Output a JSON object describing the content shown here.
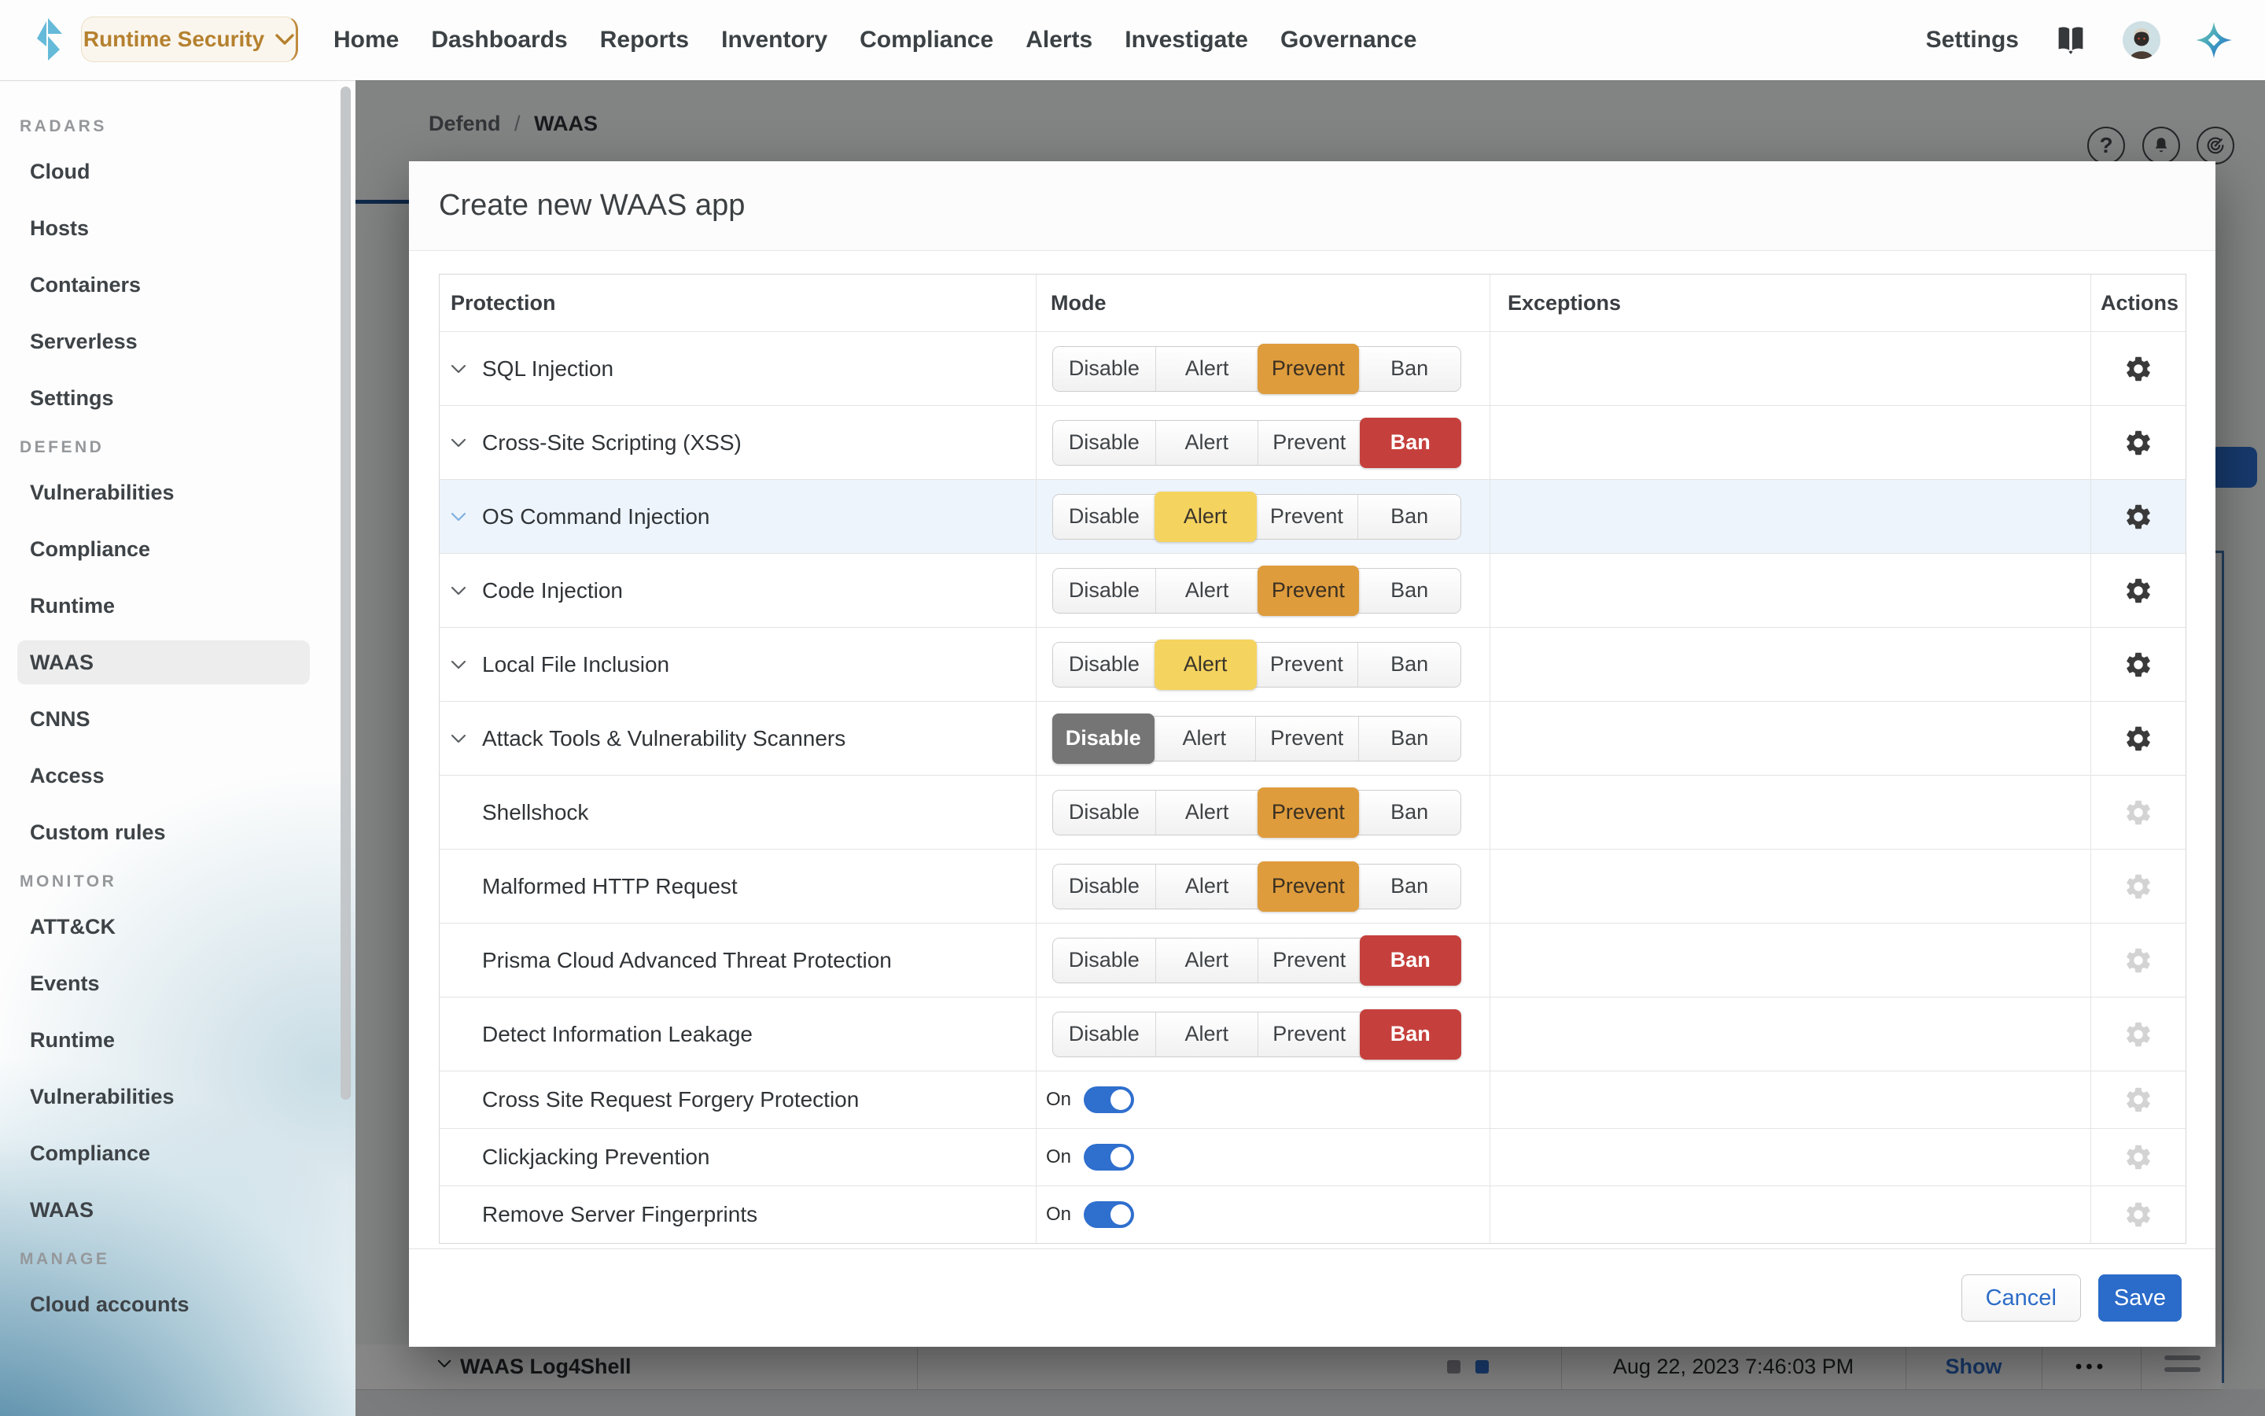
{
  "colors": {
    "accent_orange": "#df9c3c",
    "accent_red": "#c5403c",
    "accent_yellow": "#f5d35f",
    "accent_gray": "#757575",
    "toggle_blue": "#2f6fce",
    "save_blue": "#2b6bc9",
    "link_blue": "#2d6cc8",
    "brand_amber": "#b5812f",
    "logo_teal": "#66bad9",
    "highlight_row": "#edf4fc"
  },
  "topbar": {
    "product_switcher": "Runtime Security",
    "nav": [
      "Home",
      "Dashboards",
      "Reports",
      "Inventory",
      "Compliance",
      "Alerts",
      "Investigate",
      "Governance"
    ],
    "settings_label": "Settings"
  },
  "sidebar": {
    "sections": [
      {
        "header": "RADARS",
        "items": [
          "Cloud",
          "Hosts",
          "Containers",
          "Serverless",
          "Settings"
        ]
      },
      {
        "header": "DEFEND",
        "selected": "WAAS",
        "items": [
          "Vulnerabilities",
          "Compliance",
          "Runtime",
          "WAAS",
          "CNNS",
          "Access",
          "Custom rules"
        ]
      },
      {
        "header": "MONITOR",
        "items": [
          "ATT&CK",
          "Events",
          "Runtime",
          "Vulnerabilities",
          "Compliance",
          "WAAS"
        ]
      },
      {
        "header": "MANAGE",
        "items": [
          "Cloud accounts"
        ]
      }
    ]
  },
  "page": {
    "breadcrumb": {
      "section": "Defend",
      "separator": "/",
      "page": "WAAS"
    },
    "bottom_row": {
      "name": "WAAS Log4Shell",
      "date": "Aug 22, 2023 7:46:03 PM",
      "show_label": "Show",
      "dots": "•••"
    }
  },
  "modal": {
    "title": "Create new WAAS app",
    "columns": [
      "Protection",
      "Mode",
      "Exceptions",
      "Actions"
    ],
    "mode_options": [
      "Disable",
      "Alert",
      "Prevent",
      "Ban"
    ],
    "rows": [
      {
        "name": "SQL Injection",
        "expandable": true,
        "mode": "Prevent",
        "gear": "dark"
      },
      {
        "name": "Cross-Site Scripting (XSS)",
        "expandable": true,
        "mode": "Ban",
        "gear": "dark"
      },
      {
        "name": "OS Command Injection",
        "expandable": true,
        "mode": "Alert",
        "gear": "dark",
        "highlighted": true
      },
      {
        "name": "Code Injection",
        "expandable": true,
        "mode": "Prevent",
        "gear": "dark"
      },
      {
        "name": "Local File Inclusion",
        "expandable": true,
        "mode": "Alert",
        "gear": "dark"
      },
      {
        "name": "Attack Tools & Vulnerability Scanners",
        "expandable": true,
        "mode": "Disable",
        "gear": "dark"
      },
      {
        "name": "Shellshock",
        "expandable": false,
        "mode": "Prevent",
        "gear": "light"
      },
      {
        "name": "Malformed HTTP Request",
        "expandable": false,
        "mode": "Prevent",
        "gear": "light"
      },
      {
        "name": "Prisma Cloud Advanced Threat Protection",
        "expandable": false,
        "mode": "Ban",
        "gear": "light"
      },
      {
        "name": "Detect Information Leakage",
        "expandable": false,
        "mode": "Ban",
        "gear": "light"
      }
    ],
    "toggle_rows": [
      {
        "name": "Cross Site Request Forgery Protection",
        "state": "On"
      },
      {
        "name": "Clickjacking Prevention",
        "state": "On"
      },
      {
        "name": "Remove Server Fingerprints",
        "state": "On"
      }
    ],
    "cancel_label": "Cancel",
    "save_label": "Save"
  }
}
